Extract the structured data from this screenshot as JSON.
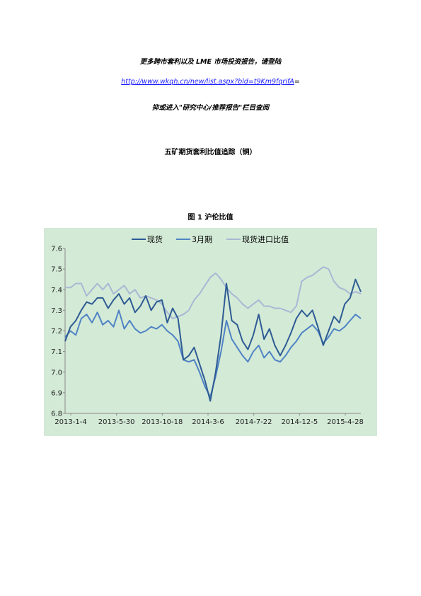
{
  "header": {
    "line1": "更多跨市套利以及 LME 市场投资报告，请登陆",
    "link": "http://www.wkqh.cn/new/list.aspx?bld=t9Km9fqrifA",
    "link_suffix": "=",
    "line3": "抑或进入\"研究中心/推荐报告\"栏目查阅"
  },
  "document_title": "五矿期货套利比值追踪（铜）",
  "figure_caption": "图 1   沪伦比值",
  "chart_data": {
    "type": "line",
    "title": "",
    "xlabel": "",
    "ylabel": "",
    "ylim": [
      6.8,
      7.6
    ],
    "yticks": [
      "7.6",
      "7.5",
      "7.4",
      "7.3",
      "7.2",
      "7.1",
      "7.0",
      "6.9",
      "6.8"
    ],
    "xticks": [
      "2013-1-4",
      "2013-5-30",
      "2013-10-18",
      "2014-3-6",
      "2014-7-22",
      "2014-12-5",
      "2015-4-28"
    ],
    "x": [
      0,
      12,
      24,
      36,
      48,
      60,
      72,
      84,
      96,
      108,
      120,
      132,
      144,
      156,
      168,
      180,
      192,
      204,
      216,
      228,
      240,
      252,
      264,
      276,
      288,
      300,
      312,
      324,
      336,
      348,
      360,
      372,
      384,
      396,
      408,
      420,
      432,
      444,
      456,
      468,
      480,
      492,
      504,
      516,
      528,
      540,
      552,
      564,
      576,
      588,
      600,
      612,
      624,
      636,
      648,
      660
    ],
    "series": [
      {
        "name": "现货",
        "color": "#2e5b94",
        "values": [
          7.15,
          7.22,
          7.25,
          7.3,
          7.34,
          7.33,
          7.36,
          7.36,
          7.31,
          7.35,
          7.38,
          7.33,
          7.36,
          7.29,
          7.32,
          7.37,
          7.3,
          7.34,
          7.35,
          7.24,
          7.31,
          7.26,
          7.06,
          7.08,
          7.12,
          7.04,
          6.96,
          6.86,
          7.0,
          7.18,
          7.43,
          7.25,
          7.23,
          7.15,
          7.11,
          7.18,
          7.28,
          7.16,
          7.21,
          7.13,
          7.08,
          7.13,
          7.19,
          7.26,
          7.3,
          7.27,
          7.3,
          7.22,
          7.13,
          7.2,
          7.27,
          7.24,
          7.33,
          7.36,
          7.45,
          7.39
        ]
      },
      {
        "name": "3月期",
        "color": "#4f83c4",
        "values": [
          7.17,
          7.2,
          7.18,
          7.26,
          7.28,
          7.24,
          7.29,
          7.23,
          7.25,
          7.22,
          7.3,
          7.21,
          7.25,
          7.21,
          7.19,
          7.2,
          7.22,
          7.21,
          7.23,
          7.2,
          7.18,
          7.15,
          7.06,
          7.05,
          7.06,
          7.0,
          6.93,
          6.88,
          6.98,
          7.1,
          7.25,
          7.16,
          7.12,
          7.08,
          7.05,
          7.1,
          7.13,
          7.07,
          7.1,
          7.06,
          7.05,
          7.08,
          7.12,
          7.15,
          7.19,
          7.21,
          7.23,
          7.2,
          7.14,
          7.17,
          7.21,
          7.2,
          7.22,
          7.25,
          7.28,
          7.26
        ]
      },
      {
        "name": "现货进口比值",
        "color": "#a9b8d4",
        "values": [
          7.41,
          7.41,
          7.43,
          7.43,
          7.37,
          7.4,
          7.43,
          7.4,
          7.43,
          7.38,
          7.4,
          7.42,
          7.38,
          7.4,
          7.36,
          7.37,
          7.36,
          7.35,
          7.33,
          7.29,
          7.26,
          7.27,
          7.28,
          7.3,
          7.35,
          7.38,
          7.42,
          7.46,
          7.48,
          7.45,
          7.41,
          7.38,
          7.36,
          7.33,
          7.31,
          7.33,
          7.35,
          7.32,
          7.32,
          7.31,
          7.31,
          7.3,
          7.29,
          7.32,
          7.44,
          7.46,
          7.47,
          7.49,
          7.51,
          7.5,
          7.44,
          7.41,
          7.4,
          7.38,
          7.39,
          7.38
        ]
      }
    ],
    "legend_position": "top",
    "grid": false
  }
}
